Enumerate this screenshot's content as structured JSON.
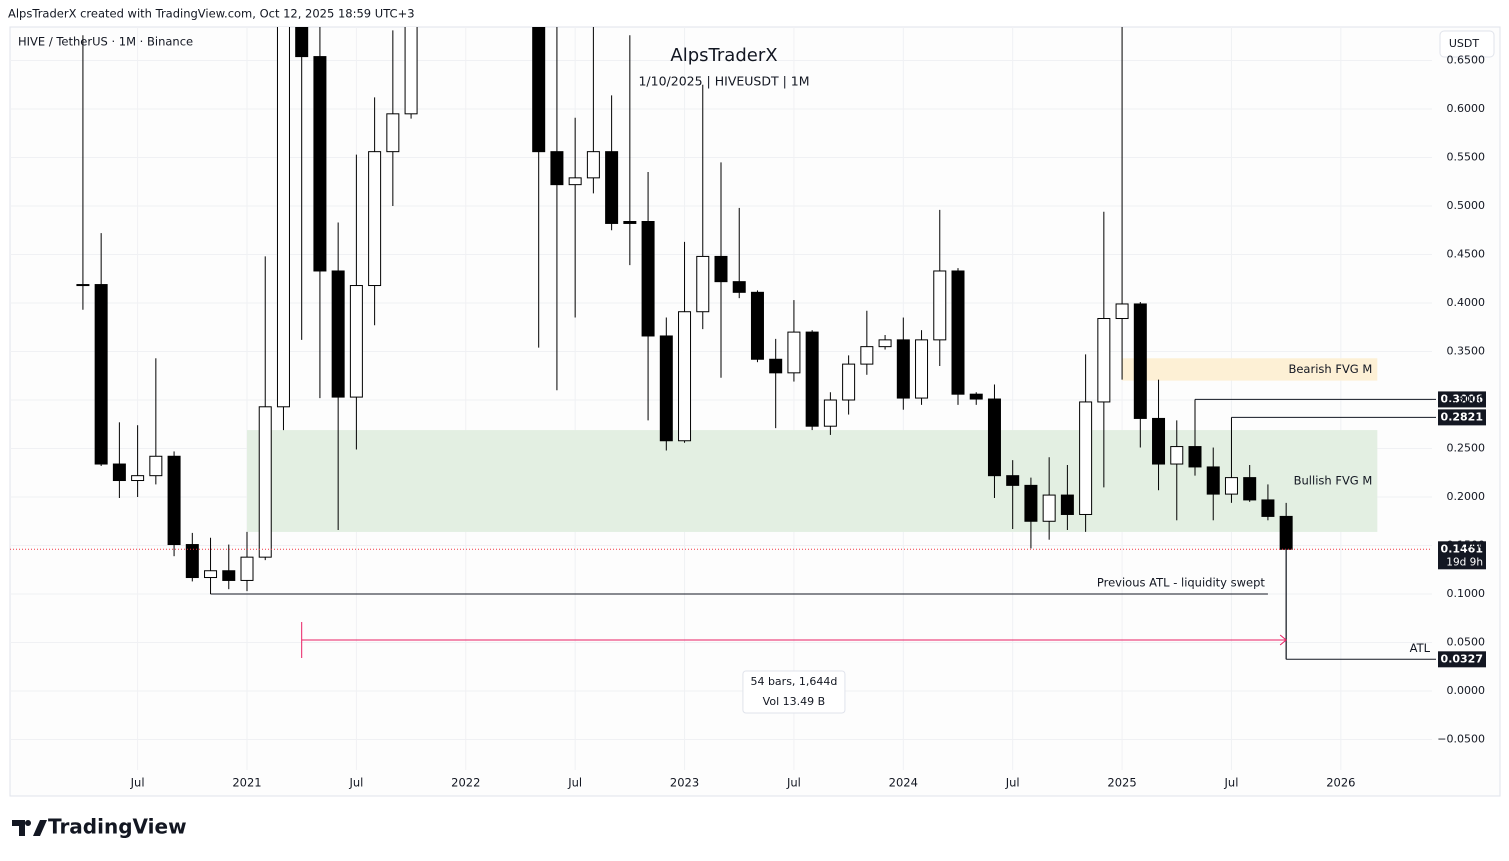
{
  "header": "AlpsTraderX created with TradingView.com, Oct 12, 2025 18:59 UTC+3",
  "logo": "TradingView",
  "chart_data": {
    "type": "candlestick",
    "title": "AlpsTraderX",
    "subtitle": "1/10/2025 | HIVEUSDT | 1M",
    "symbol": "HIVE / TetherUS · 1M · Binance",
    "currency": "USDT",
    "up_color": "#ffffff",
    "down_color": "#000000",
    "wick_color": "#000000",
    "grid": true,
    "x": [
      "2020-04",
      "2020-05",
      "2020-06",
      "2020-07",
      "2020-08",
      "2020-09",
      "2020-10",
      "2020-11",
      "2020-12",
      "2021-01",
      "2021-02",
      "2021-03",
      "2021-04",
      "2021-05",
      "2021-06",
      "2021-07",
      "2021-08",
      "2021-09",
      "2021-10",
      "2022-05",
      "2022-06",
      "2022-07",
      "2022-08",
      "2022-09",
      "2022-10",
      "2022-11",
      "2022-12",
      "2023-01",
      "2023-02",
      "2023-03",
      "2023-04",
      "2023-05",
      "2023-06",
      "2023-07",
      "2023-08",
      "2023-09",
      "2023-10",
      "2023-11",
      "2023-12",
      "2024-01",
      "2024-02",
      "2024-03",
      "2024-04",
      "2024-05",
      "2024-06",
      "2024-07",
      "2024-08",
      "2024-09",
      "2024-10",
      "2024-11",
      "2024-12",
      "2025-01",
      "2025-02",
      "2025-03",
      "2025-04",
      "2025-05",
      "2025-06",
      "2025-07",
      "2025-08",
      "2025-09",
      "2025-10"
    ],
    "open": [
      0.418,
      0.419,
      0.234,
      0.217,
      0.222,
      0.242,
      0.151,
      0.117,
      0.124,
      0.114,
      0.138,
      0.293,
      0.78,
      0.654,
      0.433,
      0.303,
      0.418,
      0.556,
      0.595,
      0.74,
      0.556,
      0.522,
      0.529,
      0.556,
      0.484,
      0.484,
      0.366,
      0.258,
      0.391,
      0.448,
      0.422,
      0.411,
      0.342,
      0.328,
      0.37,
      0.273,
      0.3,
      0.337,
      0.355,
      0.362,
      0.302,
      0.362,
      0.433,
      0.306,
      0.301,
      0.222,
      0.212,
      0.175,
      0.202,
      0.182,
      0.298,
      0.384,
      0.399,
      0.281,
      0.234,
      0.252,
      0.231,
      0.203,
      0.22,
      0.197,
      0.18
    ],
    "high": [
      0.676,
      0.472,
      0.277,
      0.274,
      0.343,
      0.247,
      0.163,
      0.158,
      0.151,
      0.164,
      0.448,
      1.05,
      0.98,
      0.8,
      0.483,
      0.553,
      0.612,
      0.681,
      0.76,
      0.82,
      0.7,
      0.591,
      0.7,
      0.614,
      0.676,
      0.535,
      0.385,
      0.463,
      0.625,
      0.545,
      0.498,
      0.413,
      0.363,
      0.403,
      0.372,
      0.308,
      0.346,
      0.392,
      0.367,
      0.385,
      0.372,
      0.496,
      0.436,
      0.308,
      0.316,
      0.238,
      0.22,
      0.241,
      0.233,
      0.347,
      0.494,
      0.72,
      0.401,
      0.321,
      0.279,
      0.3006,
      0.251,
      0.2821,
      0.233,
      0.213,
      0.194
    ],
    "low": [
      0.393,
      0.232,
      0.199,
      0.2,
      0.213,
      0.139,
      0.113,
      0.1,
      0.105,
      0.103,
      0.135,
      0.269,
      0.362,
      0.302,
      0.166,
      0.249,
      0.377,
      0.5,
      0.59,
      0.354,
      0.31,
      0.385,
      0.513,
      0.475,
      0.439,
      0.279,
      0.248,
      0.256,
      0.373,
      0.323,
      0.405,
      0.339,
      0.271,
      0.319,
      0.269,
      0.264,
      0.285,
      0.326,
      0.352,
      0.29,
      0.295,
      0.335,
      0.295,
      0.295,
      0.199,
      0.167,
      0.147,
      0.156,
      0.166,
      0.164,
      0.21,
      0.321,
      0.251,
      0.207,
      0.176,
      0.222,
      0.176,
      0.194,
      0.195,
      0.176,
      0.0327
    ],
    "close": [
      0.419,
      0.234,
      0.217,
      0.222,
      0.242,
      0.151,
      0.117,
      0.124,
      0.114,
      0.138,
      0.293,
      0.78,
      0.654,
      0.433,
      0.303,
      0.418,
      0.556,
      0.595,
      0.71,
      0.556,
      0.522,
      0.529,
      0.556,
      0.482,
      0.482,
      0.366,
      0.258,
      0.391,
      0.448,
      0.422,
      0.411,
      0.342,
      0.328,
      0.37,
      0.273,
      0.3,
      0.337,
      0.355,
      0.362,
      0.302,
      0.362,
      0.433,
      0.306,
      0.301,
      0.222,
      0.212,
      0.175,
      0.202,
      0.182,
      0.298,
      0.384,
      0.399,
      0.281,
      0.234,
      0.252,
      0.231,
      0.203,
      0.22,
      0.197,
      0.18,
      0.1461
    ],
    "xlim": [
      "2019-12",
      "2026-06"
    ],
    "xticks": [
      {
        "value": "2020-07",
        "label": "Jul"
      },
      {
        "value": "2021-01",
        "label": "2021"
      },
      {
        "value": "2021-07",
        "label": "Jul"
      },
      {
        "value": "2022-01",
        "label": "2022"
      },
      {
        "value": "2022-07",
        "label": "Jul"
      },
      {
        "value": "2023-01",
        "label": "2023"
      },
      {
        "value": "2023-07",
        "label": "Jul"
      },
      {
        "value": "2024-01",
        "label": "2024"
      },
      {
        "value": "2024-07",
        "label": "Jul"
      },
      {
        "value": "2025-01",
        "label": "2025"
      },
      {
        "value": "2025-07",
        "label": "Jul"
      },
      {
        "value": "2026-01",
        "label": "2026"
      }
    ],
    "ylim": [
      -0.0814,
      0.6845
    ],
    "yticks": [
      {
        "value": -0.05,
        "label": "−0.0500"
      },
      {
        "value": 0,
        "label": "0.0000"
      },
      {
        "value": 0.05,
        "label": "0.0500"
      },
      {
        "value": 0.1,
        "label": "0.1000"
      },
      {
        "value": 0.15,
        "label": "0.1500"
      },
      {
        "value": 0.2,
        "label": "0.2000"
      },
      {
        "value": 0.25,
        "label": "0.2500"
      },
      {
        "value": 0.3,
        "label": "0.3000"
      },
      {
        "value": 0.35,
        "label": "0.3500"
      },
      {
        "value": 0.4,
        "label": "0.4000"
      },
      {
        "value": 0.45,
        "label": "0.4500"
      },
      {
        "value": 0.5,
        "label": "0.5000"
      },
      {
        "value": 0.55,
        "label": "0.5500"
      },
      {
        "value": 0.6,
        "label": "0.6000"
      },
      {
        "value": 0.65,
        "label": "0.6500"
      }
    ],
    "zones": [
      {
        "label": "Bearish FVG M",
        "low": 0.32,
        "high": 0.343,
        "from": "2025-01",
        "to": "2026-03",
        "color": "#fdf0d5"
      },
      {
        "label": "Bullish FVG M",
        "low": 0.164,
        "high": 0.269,
        "from": "2021-01",
        "to": "2026-03",
        "color": "#e3efe2"
      }
    ],
    "levels": [
      {
        "value": 0.3006,
        "from": "2025-05"
      },
      {
        "value": 0.2821,
        "from": "2025-07"
      },
      {
        "value": 0.0327,
        "from": "2025-10",
        "label": "ATL"
      }
    ],
    "previous_atl": {
      "label": "Previous ATL - liquidity swept",
      "value": 0.1,
      "from": "2020-11",
      "to": "2025-09"
    },
    "last_price": {
      "value": 0.1461,
      "countdown": "19d 9h",
      "color": "#f23645"
    },
    "measure": {
      "from": "2021-04",
      "to": "2025-10",
      "y": 0.0526,
      "color": "#e91e63",
      "lines": [
        "54 bars, 1,644d",
        "Vol 13.49 B"
      ]
    }
  }
}
